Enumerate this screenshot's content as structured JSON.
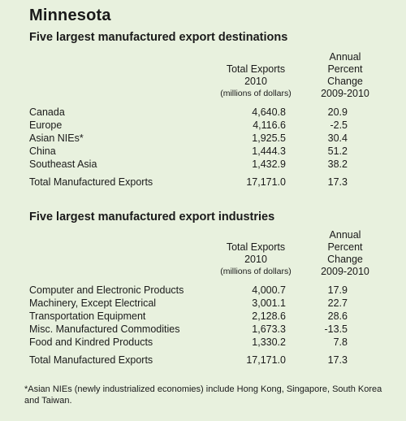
{
  "title": "Minnesota",
  "section1": {
    "heading": "Five largest manufactured export destinations",
    "col1": [
      "Total Exports",
      "2010",
      "(millions of dollars)"
    ],
    "col2": [
      "Annual",
      "Percent",
      "Change",
      "2009-2010"
    ],
    "rows": [
      {
        "label": "Canada",
        "total": "4,640.8",
        "change": "20.9"
      },
      {
        "label": "Europe",
        "total": "4,116.6",
        "change": "-2.5"
      },
      {
        "label": "Asian NIEs*",
        "total": "1,925.5",
        "change": "30.4"
      },
      {
        "label": "China",
        "total": "1,444.3",
        "change": "51.2"
      },
      {
        "label": "Southeast Asia",
        "total": "1,432.9",
        "change": "38.2"
      }
    ],
    "total_row": {
      "label": "Total Manufactured Exports",
      "total": "17,171.0",
      "change": "17.3"
    }
  },
  "section2": {
    "heading": "Five largest manufactured export industries",
    "col1": [
      "Total Exports",
      "2010",
      "(millions of dollars)"
    ],
    "col2": [
      "Annual",
      "Percent",
      "Change",
      "2009-2010"
    ],
    "rows": [
      {
        "label": "Computer and Electronic Products",
        "total": "4,000.7",
        "change": "17.9"
      },
      {
        "label": "Machinery, Except Electrical",
        "total": "3,001.1",
        "change": "22.7"
      },
      {
        "label": "Transportation Equipment",
        "total": "2,128.6",
        "change": "28.6"
      },
      {
        "label": "Misc. Manufactured Commodities",
        "total": "1,673.3",
        "change": "-13.5"
      },
      {
        "label": "Food and Kindred Products",
        "total": "1,330.2",
        "change": "7.8"
      }
    ],
    "total_row": {
      "label": "Total Manufactured Exports",
      "total": "17,171.0",
      "change": "17.3"
    }
  },
  "footnote": "*Asian NIEs (newly industrialized economies) include Hong Kong, Singapore, South Korea and Taiwan."
}
